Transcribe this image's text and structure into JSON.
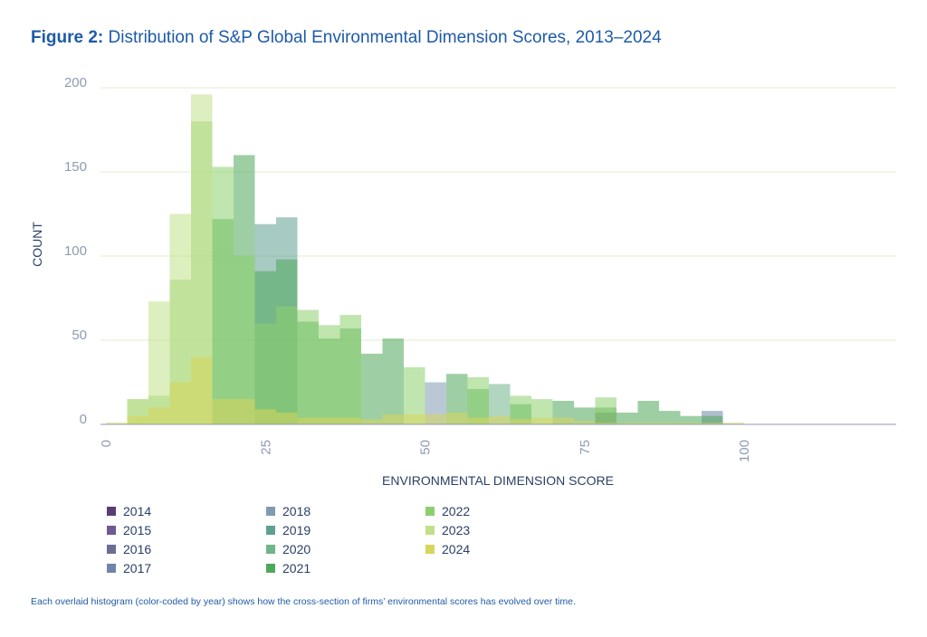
{
  "title": {
    "lead": "Figure 2:",
    "text": "Distribution of S&P Global Environmental Dimension Scores, 2013–2024"
  },
  "chart_data": {
    "type": "bar",
    "subtype": "overlaid histogram",
    "xlabel": "ENVIRONMENTAL DIMENSION SCORE",
    "ylabel": "COUNT",
    "xlim": [
      0,
      125
    ],
    "ylim": [
      0,
      200
    ],
    "xticks": [
      0,
      25,
      50,
      75,
      100
    ],
    "yticks": [
      0,
      50,
      100,
      150,
      200
    ],
    "bin_width": 3.33,
    "bin_starts": [
      0,
      3.33,
      6.67,
      10,
      13.33,
      16.67,
      20,
      23.33,
      26.67,
      30,
      33.33,
      36.67,
      40,
      43.33,
      46.67,
      50,
      53.33,
      56.67,
      60,
      63.33,
      66.67,
      70,
      73.33,
      76.67,
      80,
      83.33,
      86.67,
      90,
      93.33,
      96.67
    ],
    "series": [
      {
        "name": "2014",
        "color": "#5a3e73",
        "values": [
          0,
          0,
          0,
          0,
          0,
          0,
          0,
          0,
          0,
          0,
          0,
          0,
          0,
          0,
          0,
          0,
          0,
          0,
          0,
          0,
          0,
          0,
          0,
          7,
          0,
          0,
          0,
          0,
          0,
          0
        ]
      },
      {
        "name": "2015",
        "color": "#6f5a93",
        "values": [
          0,
          0,
          0,
          0,
          0,
          0,
          0,
          0,
          0,
          0,
          0,
          0,
          0,
          0,
          0,
          0,
          0,
          0,
          0,
          0,
          0,
          0,
          0,
          0,
          0,
          0,
          0,
          0,
          0,
          0
        ]
      },
      {
        "name": "2016",
        "color": "#6a6f92",
        "values": [
          0,
          0,
          0,
          0,
          0,
          0,
          0,
          0,
          0,
          0,
          0,
          0,
          0,
          0,
          0,
          0,
          0,
          0,
          0,
          0,
          0,
          0,
          0,
          0,
          0,
          0,
          0,
          0,
          0,
          0
        ]
      },
      {
        "name": "2017",
        "color": "#6f86a8",
        "values": [
          0,
          0,
          0,
          0,
          0,
          0,
          0,
          0,
          0,
          0,
          0,
          0,
          0,
          0,
          0,
          0,
          0,
          0,
          0,
          0,
          0,
          0,
          0,
          0,
          0,
          0,
          0,
          0,
          8,
          0
        ]
      },
      {
        "name": "2018",
        "color": "#7f9bb0",
        "values": [
          0,
          0,
          0,
          0,
          0,
          0,
          0,
          0,
          0,
          0,
          0,
          0,
          0,
          0,
          0,
          25,
          0,
          0,
          0,
          0,
          0,
          0,
          0,
          0,
          0,
          0,
          0,
          0,
          0,
          0
        ]
      },
      {
        "name": "2019",
        "color": "#5f9f92",
        "values": [
          0,
          0,
          0,
          0,
          0,
          0,
          0,
          119,
          123,
          0,
          0,
          0,
          0,
          0,
          0,
          0,
          0,
          0,
          0,
          0,
          0,
          0,
          0,
          0,
          0,
          0,
          0,
          0,
          0,
          0
        ]
      },
      {
        "name": "2020",
        "color": "#6fb58a",
        "values": [
          0,
          0,
          0,
          0,
          0,
          0,
          0,
          0,
          0,
          0,
          0,
          0,
          0,
          0,
          0,
          0,
          0,
          0,
          24,
          0,
          0,
          0,
          0,
          0,
          0,
          0,
          0,
          0,
          0,
          0
        ]
      },
      {
        "name": "2021",
        "color": "#4fa85a",
        "values": [
          0,
          0,
          0,
          0,
          0,
          122,
          160,
          91,
          98,
          61,
          51,
          57,
          42,
          51,
          0,
          0,
          30,
          21,
          0,
          12,
          0,
          14,
          10,
          10,
          7,
          14,
          8,
          5,
          5,
          0
        ]
      },
      {
        "name": "2022",
        "color": "#8ccf6e",
        "values": [
          0,
          15,
          17,
          86,
          180,
          153,
          100,
          60,
          70,
          68,
          59,
          65,
          0,
          0,
          34,
          0,
          0,
          28,
          0,
          17,
          15,
          0,
          0,
          16,
          0,
          0,
          0,
          0,
          0,
          0
        ]
      },
      {
        "name": "2023",
        "color": "#c1e08a",
        "values": [
          0,
          15,
          73,
          125,
          196,
          0,
          0,
          0,
          0,
          0,
          0,
          0,
          0,
          0,
          0,
          0,
          0,
          0,
          0,
          0,
          0,
          0,
          0,
          0,
          0,
          0,
          0,
          0,
          0,
          0
        ]
      },
      {
        "name": "2024",
        "color": "#d7d55a",
        "values": [
          1,
          5,
          10,
          25,
          40,
          15,
          15,
          9,
          7,
          4,
          4,
          4,
          3,
          6,
          6,
          6,
          7,
          4,
          5,
          3,
          4,
          4,
          2,
          1,
          1,
          1,
          1,
          1,
          1,
          1
        ]
      }
    ]
  },
  "legend": [
    {
      "label": "2014",
      "color": "#5a3e73"
    },
    {
      "label": "2015",
      "color": "#6f5a93"
    },
    {
      "label": "2016",
      "color": "#6a6f92"
    },
    {
      "label": "2017",
      "color": "#6f86a8"
    },
    {
      "label": "2018",
      "color": "#7f9bb0"
    },
    {
      "label": "2019",
      "color": "#5f9f92"
    },
    {
      "label": "2020",
      "color": "#6fb58a"
    },
    {
      "label": "2021",
      "color": "#4fa85a"
    },
    {
      "label": "2022",
      "color": "#8ccf6e"
    },
    {
      "label": "2023",
      "color": "#c1e08a"
    },
    {
      "label": "2024",
      "color": "#d7d55a"
    }
  ],
  "caption": "Each overlaid histogram (color-coded by year) shows how the cross-section of firms’ environmental scores has evolved over time."
}
